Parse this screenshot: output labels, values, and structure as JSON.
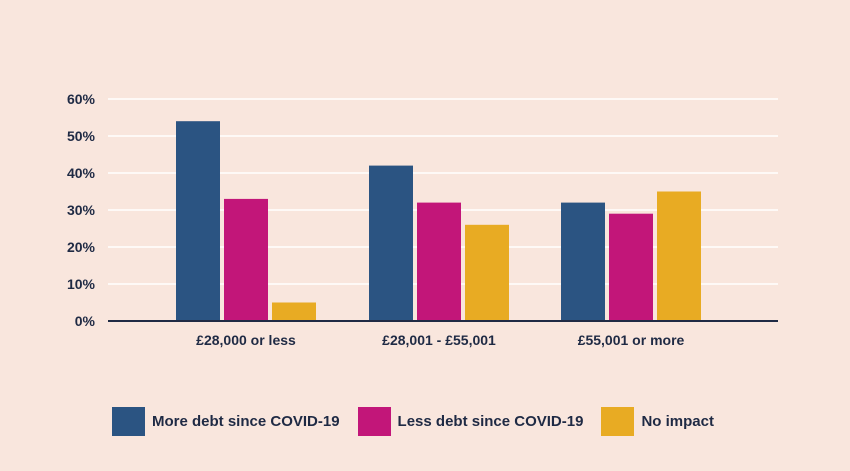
{
  "chart_data": {
    "type": "bar",
    "categories": [
      "£28,000 or less",
      "£28,001 - £55,001",
      "£55,001 or more"
    ],
    "series": [
      {
        "name": "More debt since COVID-19",
        "color": "#2b5482",
        "values": [
          54,
          42,
          32
        ]
      },
      {
        "name": "Less debt since COVID-19",
        "color": "#c21679",
        "values": [
          33,
          32,
          29
        ]
      },
      {
        "name": "No impact",
        "color": "#e8ab23",
        "values": [
          5,
          26,
          35
        ]
      }
    ],
    "yticks": [
      "0%",
      "10%",
      "20%",
      "30%",
      "40%",
      "50%",
      "60%"
    ],
    "ylim": [
      0,
      60
    ],
    "grid": true,
    "legend_position": "bottom-left",
    "background_color": "#f9e6dd",
    "axis_color": "#1f2a44"
  }
}
